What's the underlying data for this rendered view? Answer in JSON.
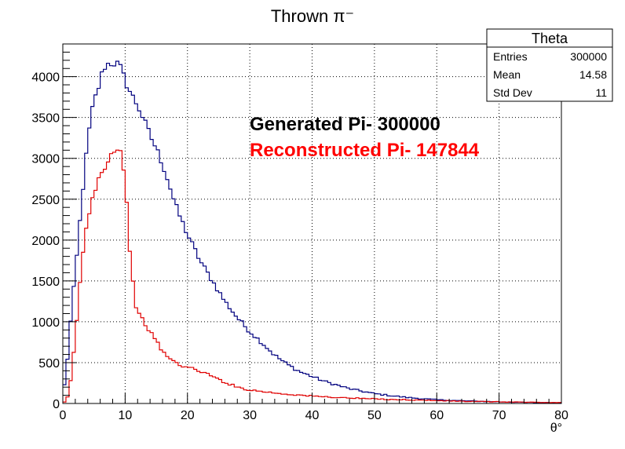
{
  "title": "Thrown π⁻",
  "stats_box": {
    "name": "Theta",
    "rows": [
      {
        "label": "Entries",
        "value": "300000"
      },
      {
        "label": "Mean",
        "value": "14.58"
      },
      {
        "label": "Std Dev",
        "value": "11"
      }
    ]
  },
  "annotations": {
    "generated": "Generated Pi- 300000",
    "reconstructed": "Reconstructed Pi- 147844"
  },
  "colors": {
    "generated": "#00007f",
    "reconstructed": "#e00000",
    "grid": "#000000",
    "generated_text": "#000000",
    "reconstructed_text": "#ff0000"
  },
  "chart_data": {
    "type": "histogram",
    "title": "Thrown π⁻",
    "xlabel": "θ°",
    "ylabel": "",
    "xlim": [
      0,
      80
    ],
    "ylim": [
      0,
      4400
    ],
    "bin_width": 0.5,
    "x_ticks": [
      0,
      10,
      20,
      30,
      40,
      50,
      60,
      70,
      80
    ],
    "y_ticks": [
      0,
      500,
      1000,
      1500,
      2000,
      2500,
      3000,
      3500,
      4000
    ],
    "x_tick_labels": [
      "0",
      "10",
      "20",
      "30",
      "40",
      "50",
      "60",
      "70",
      "80"
    ],
    "y_tick_labels": [
      "0",
      "500",
      "1000",
      "1500",
      "2000",
      "2500",
      "3000",
      "3500",
      "4000"
    ],
    "grid": true,
    "series": [
      {
        "key": "generated",
        "anchors": [
          [
            0,
            150
          ],
          [
            0.5,
            300
          ],
          [
            1,
            800
          ],
          [
            1.5,
            1200
          ],
          [
            2,
            1600
          ],
          [
            2.5,
            2000
          ],
          [
            3,
            2450
          ],
          [
            3.5,
            2850
          ],
          [
            4,
            3200
          ],
          [
            4.5,
            3500
          ],
          [
            5,
            3700
          ],
          [
            5.5,
            3800
          ],
          [
            6,
            3950
          ],
          [
            6.5,
            4100
          ],
          [
            7,
            4150
          ],
          [
            8,
            4170
          ],
          [
            9,
            4150
          ],
          [
            9.5,
            4060
          ],
          [
            10,
            3950
          ],
          [
            11,
            3780
          ],
          [
            12,
            3650
          ],
          [
            13,
            3470
          ],
          [
            14,
            3280
          ],
          [
            15,
            3120
          ],
          [
            16,
            2930
          ],
          [
            17,
            2700
          ],
          [
            18,
            2440
          ],
          [
            19,
            2250
          ],
          [
            20,
            2070
          ],
          [
            22,
            1750
          ],
          [
            24,
            1500
          ],
          [
            26,
            1250
          ],
          [
            28,
            1050
          ],
          [
            30,
            880
          ],
          [
            32,
            740
          ],
          [
            34,
            590
          ],
          [
            36,
            480
          ],
          [
            38,
            390
          ],
          [
            40,
            330
          ],
          [
            42,
            270
          ],
          [
            44,
            225
          ],
          [
            46,
            180
          ],
          [
            48,
            150
          ],
          [
            50,
            120
          ],
          [
            55,
            75
          ],
          [
            60,
            45
          ],
          [
            65,
            30
          ],
          [
            70,
            20
          ],
          [
            75,
            12
          ],
          [
            80,
            8
          ]
        ]
      },
      {
        "key": "reconstructed",
        "anchors": [
          [
            0,
            0
          ],
          [
            0.5,
            30
          ],
          [
            1,
            120
          ],
          [
            1.5,
            430
          ],
          [
            2,
            800
          ],
          [
            2.5,
            1250
          ],
          [
            3,
            1700
          ],
          [
            3.5,
            2000
          ],
          [
            4,
            2250
          ],
          [
            4.5,
            2450
          ],
          [
            5,
            2600
          ],
          [
            5.5,
            2700
          ],
          [
            6,
            2800
          ],
          [
            7,
            2950
          ],
          [
            8,
            3070
          ],
          [
            8.5,
            3150
          ],
          [
            9,
            3120
          ],
          [
            9.5,
            3050
          ],
          [
            10,
            2700
          ],
          [
            10.5,
            2150
          ],
          [
            11,
            1650
          ],
          [
            11.5,
            1300
          ],
          [
            12,
            1100
          ],
          [
            13,
            1000
          ],
          [
            14,
            880
          ],
          [
            15,
            760
          ],
          [
            16,
            640
          ],
          [
            17,
            560
          ],
          [
            18,
            500
          ],
          [
            20,
            440
          ],
          [
            22,
            400
          ],
          [
            24,
            330
          ],
          [
            26,
            260
          ],
          [
            28,
            200
          ],
          [
            30,
            165
          ],
          [
            35,
            120
          ],
          [
            40,
            90
          ],
          [
            45,
            70
          ],
          [
            50,
            55
          ],
          [
            55,
            45
          ],
          [
            60,
            35
          ],
          [
            65,
            25
          ],
          [
            70,
            20
          ],
          [
            75,
            15
          ],
          [
            80,
            10
          ]
        ]
      }
    ]
  }
}
